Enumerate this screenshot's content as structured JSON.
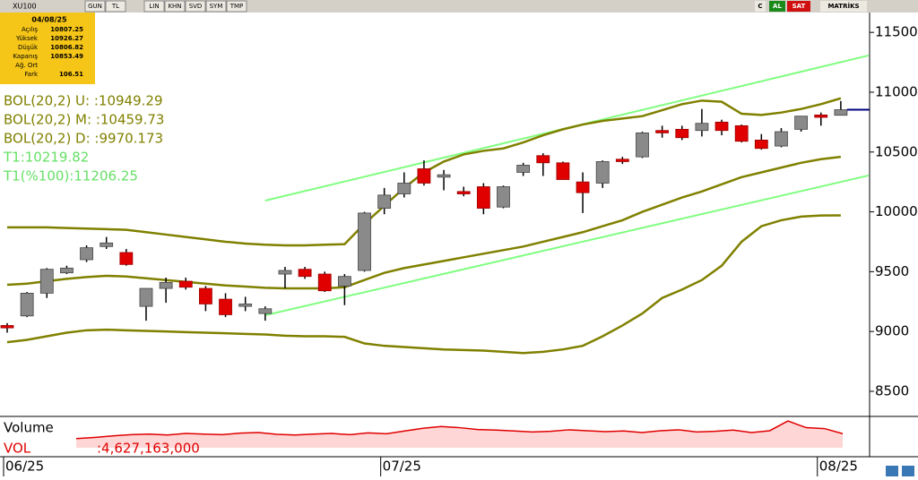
{
  "toolbar": {
    "symbol": "XU100",
    "buttons": [
      "GUN",
      "TL",
      "LIN",
      "KHN",
      "SVD",
      "SYM",
      "TMP"
    ],
    "right": [
      "C",
      "AL",
      "SAT",
      "MATRİKS"
    ]
  },
  "info_box": {
    "date": "04/08/25",
    "rows": [
      [
        "Açılış",
        "10807.25"
      ],
      [
        "Yüksek",
        "10926.27"
      ],
      [
        "Düşük",
        "10806.82"
      ],
      [
        "Kapanış",
        "10853.49"
      ],
      [
        "Ağ. Ort",
        ""
      ],
      [
        "Fark",
        "106.51"
      ]
    ]
  },
  "legend": [
    {
      "text": "BOL(20,2) U:   :10949.29",
      "color": "#808000"
    },
    {
      "text": "BOL(20,2) M:   :10459.73",
      "color": "#808000"
    },
    {
      "text": "BOL(20,2) D:   :9970.173",
      "color": "#808000"
    },
    {
      "text": "T1:10219.82",
      "color": "#66e066"
    },
    {
      "text": "T1(%100):11206.25",
      "color": "#66e066"
    }
  ],
  "chart_data": {
    "type": "candlestick",
    "categories": [
      "06/25",
      null,
      null,
      null,
      null,
      null,
      null,
      null,
      null,
      null,
      null,
      null,
      null,
      null,
      null,
      null,
      null,
      null,
      null,
      "07/25",
      null,
      null,
      null,
      null,
      null,
      null,
      null,
      null,
      null,
      null,
      null,
      null,
      null,
      null,
      null,
      null,
      null,
      null,
      null,
      null,
      null,
      "08/25",
      null
    ],
    "open": [
      9050,
      9130,
      9320,
      9490,
      9600,
      9710,
      9660,
      9210,
      9360,
      9420,
      9360,
      9270,
      9210,
      9150,
      9480,
      9520,
      9480,
      9380,
      9510,
      10030,
      10150,
      10360,
      10290,
      10170,
      10210,
      10040,
      10330,
      10470,
      10410,
      10250,
      10240,
      10440,
      10460,
      10680,
      10690,
      10680,
      10750,
      10720,
      10600,
      10550,
      10690,
      10810,
      10807.25
    ],
    "high": [
      9070,
      9330,
      9530,
      9550,
      9720,
      9790,
      9690,
      9360,
      9450,
      9450,
      9380,
      9320,
      9290,
      9210,
      9540,
      9540,
      9500,
      9480,
      10000,
      10200,
      10330,
      10430,
      10350,
      10210,
      10240,
      10220,
      10410,
      10490,
      10420,
      10330,
      10430,
      10460,
      10670,
      10720,
      10720,
      10860,
      10770,
      10730,
      10650,
      10700,
      10800,
      10830,
      10926.27
    ],
    "low": [
      8990,
      9120,
      9280,
      9480,
      9580,
      9690,
      9550,
      9090,
      9240,
      9350,
      9170,
      9120,
      9170,
      9090,
      9360,
      9440,
      9330,
      9220,
      9500,
      9980,
      10120,
      10220,
      10180,
      10130,
      9980,
      10030,
      10300,
      10300,
      10270,
      9990,
      10200,
      10400,
      10450,
      10620,
      10600,
      10630,
      10640,
      10580,
      10520,
      10540,
      10670,
      10720,
      10806.82
    ],
    "close": [
      9030,
      9320,
      9520,
      9530,
      9700,
      9740,
      9560,
      9360,
      9410,
      9370,
      9230,
      9140,
      9230,
      9190,
      9510,
      9460,
      9340,
      9460,
      9990,
      10140,
      10240,
      10240,
      10310,
      10150,
      10030,
      10210,
      10390,
      10410,
      10270,
      10160,
      10420,
      10420,
      10660,
      10660,
      10620,
      10740,
      10680,
      10590,
      10530,
      10670,
      10800,
      10790,
      10853.49
    ],
    "up_color": "#8a8a8a",
    "down_color": "#e00000",
    "last_line_color": "#000080",
    "series": [
      {
        "color": "#808000",
        "values": [
          9870,
          9870,
          9870,
          9865,
          9860,
          9855,
          9850,
          9830,
          9810,
          9790,
          9770,
          9750,
          9735,
          9725,
          9720,
          9720,
          9725,
          9730,
          9900,
          10050,
          10200,
          10330,
          10420,
          10480,
          10510,
          10530,
          10580,
          10640,
          10690,
          10730,
          10760,
          10780,
          10800,
          10850,
          10900,
          10930,
          10920,
          10820,
          10810,
          10830,
          10860,
          10900,
          10949.29
        ]
      },
      {
        "color": "#808000",
        "values": [
          9390,
          9400,
          9420,
          9440,
          9455,
          9465,
          9460,
          9445,
          9430,
          9415,
          9400,
          9385,
          9375,
          9365,
          9360,
          9360,
          9360,
          9370,
          9430,
          9490,
          9530,
          9560,
          9590,
          9620,
          9650,
          9680,
          9710,
          9750,
          9790,
          9830,
          9880,
          9930,
          10000,
          10060,
          10120,
          10170,
          10230,
          10290,
          10330,
          10370,
          10410,
          10440,
          10459.73
        ]
      },
      {
        "color": "#808000",
        "values": [
          8910,
          8930,
          8960,
          8990,
          9010,
          9015,
          9010,
          9005,
          9000,
          8995,
          8990,
          8985,
          8980,
          8975,
          8965,
          8960,
          8960,
          8955,
          8900,
          8880,
          8870,
          8860,
          8850,
          8845,
          8840,
          8830,
          8820,
          8830,
          8850,
          8880,
          8960,
          9050,
          9150,
          9280,
          9350,
          9430,
          9550,
          9750,
          9880,
          9930,
          9960,
          9970,
          9970.173
        ]
      }
    ],
    "trendlines": [
      {
        "color": "#80ff80",
        "x": [
          13,
          43.4
        ],
        "values": [
          10094,
          11307
        ]
      },
      {
        "color": "#80ff80",
        "x": [
          13,
          43.4
        ],
        "values": [
          9136,
          10304
        ]
      }
    ],
    "ylim": [
      8290,
      11666
    ],
    "yticks": [
      8500,
      9000,
      9500,
      10000,
      10500,
      11000,
      11500
    ],
    "volume": {
      "title": "Volume",
      "label": "VOL",
      "value_label": ":4,627,163,000",
      "color": "#e00000",
      "fill": "#ffd6d6",
      "values": [
        3000000000,
        3400000000,
        3900000000,
        4300000000,
        4500000000,
        4200000000,
        4700000000,
        4500000000,
        4300000000,
        4800000000,
        5000000000,
        4400000000,
        4200000000,
        4500000000,
        4700000000,
        4300000000,
        4900000000,
        4600000000,
        5500000000,
        6400000000,
        7000000000,
        6600000000,
        6000000000,
        5800000000,
        5500000000,
        5200000000,
        5400000000,
        5900000000,
        5600000000,
        5300000000,
        5500000000,
        5000000000,
        5600000000,
        5900000000,
        5200000000,
        5400000000,
        5800000000,
        5000000000,
        5600000000,
        8800000000,
        6600000000,
        6300000000,
        4627163000
      ],
      "ylim": [
        0,
        10000000000
      ]
    }
  }
}
